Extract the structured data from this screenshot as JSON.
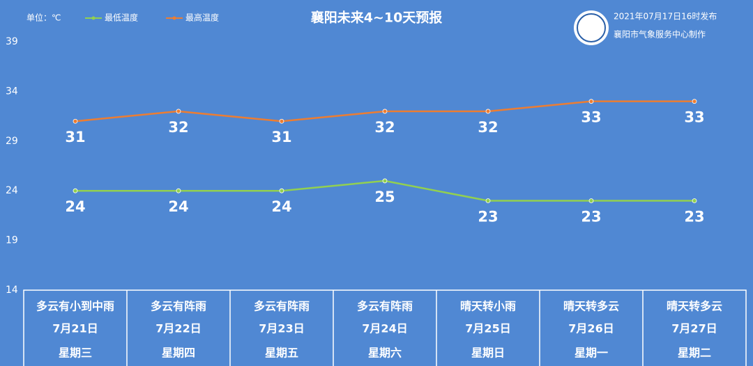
{
  "chart_data": {
    "type": "line",
    "title": "襄阳未来4~10天预报",
    "unit_label": "单位：℃",
    "x": [
      1,
      2,
      3,
      4,
      5,
      6,
      7
    ],
    "xlim": [
      0.5,
      7.5
    ],
    "ylim": [
      14,
      39
    ],
    "yticks": [
      14,
      19,
      24,
      29,
      34,
      39
    ],
    "grid": false,
    "legend": "top-left",
    "series": [
      {
        "name": "最低温度",
        "color": "#92d050",
        "values": [
          24,
          24,
          24,
          25,
          23,
          23,
          23
        ]
      },
      {
        "name": "最高温度",
        "color": "#ed7d31",
        "values": [
          31,
          32,
          31,
          32,
          32,
          33,
          33
        ]
      }
    ]
  },
  "header": {
    "issued": "2021年07月17日16时发布",
    "producer": "襄阳市气象服务中心制作"
  },
  "forecast_table": {
    "rows": [
      [
        "多云有小到中雨",
        "多云有阵雨",
        "多云有阵雨",
        "多云有阵雨",
        "晴天转小雨",
        "晴天转多云",
        "晴天转多云"
      ],
      [
        "7月21日",
        "7月22日",
        "7月23日",
        "7月24日",
        "7月25日",
        "7月26日",
        "7月27日"
      ],
      [
        "星期三",
        "星期四",
        "星期五",
        "星期六",
        "星期日",
        "星期一",
        "星期二"
      ]
    ]
  }
}
